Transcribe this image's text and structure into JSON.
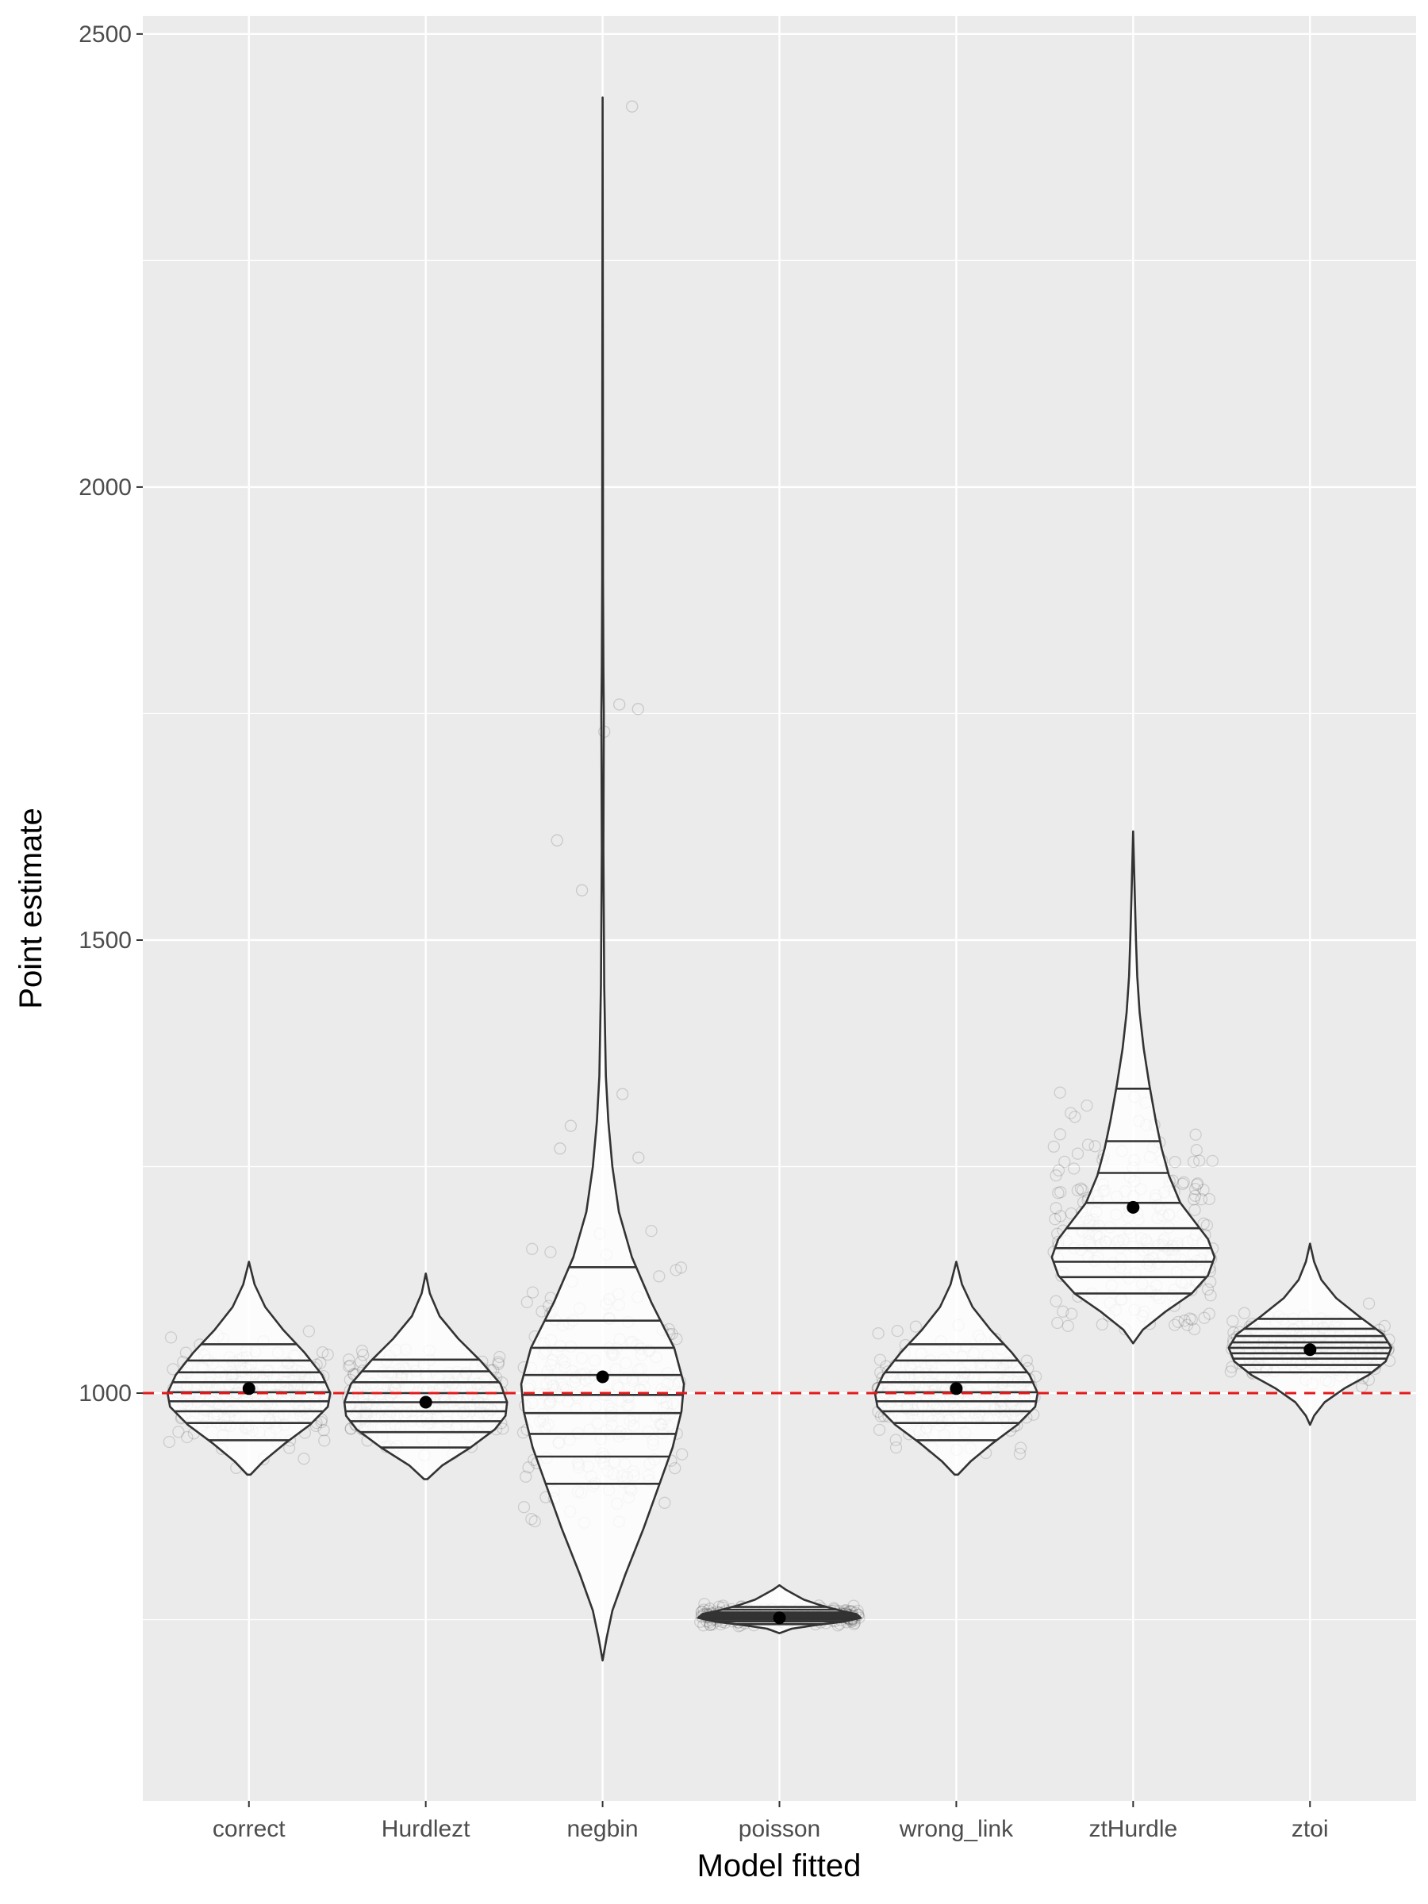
{
  "chart_data": {
    "type": "violin",
    "title": "",
    "xlabel": "Model fitted",
    "ylabel": "Point estimate",
    "ylim": [
      550,
      2520
    ],
    "y_ticks": [
      1000,
      1500,
      2000,
      2500
    ],
    "reference_line": {
      "value": 1000,
      "style": "dashed",
      "color": "#e41a1c"
    },
    "grid": true,
    "categories": [
      "correct",
      "Hurdlezt",
      "negbin",
      "poisson",
      "wrong_link",
      "ztHurdle",
      "ztoi"
    ],
    "series": [
      {
        "name": "correct",
        "min": 910,
        "max": 1145,
        "mean": 1005,
        "halfwidth": 0.46,
        "density": [
          [
            910,
            0.02
          ],
          [
            925,
            0.18
          ],
          [
            945,
            0.45
          ],
          [
            965,
            0.75
          ],
          [
            985,
            0.97
          ],
          [
            1000,
            1.0
          ],
          [
            1020,
            0.9
          ],
          [
            1045,
            0.68
          ],
          [
            1070,
            0.42
          ],
          [
            1095,
            0.2
          ],
          [
            1120,
            0.07
          ],
          [
            1145,
            0.0
          ]
        ],
        "quantiles": [
          948,
          967,
          980,
          991,
          1001,
          1012,
          1023,
          1036,
          1054
        ],
        "spread": [
          915,
          1140
        ]
      },
      {
        "name": "Hurdlezt",
        "min": 905,
        "max": 1132,
        "mean": 990,
        "halfwidth": 0.46,
        "density": [
          [
            905,
            0.02
          ],
          [
            920,
            0.2
          ],
          [
            940,
            0.55
          ],
          [
            960,
            0.85
          ],
          [
            975,
            0.98
          ],
          [
            990,
            1.0
          ],
          [
            1010,
            0.92
          ],
          [
            1035,
            0.68
          ],
          [
            1060,
            0.4
          ],
          [
            1085,
            0.17
          ],
          [
            1110,
            0.05
          ],
          [
            1132,
            0.0
          ]
        ],
        "quantiles": [
          940,
          957,
          969,
          980,
          990,
          1000,
          1012,
          1024,
          1037
        ],
        "spread": [
          910,
          1100
        ]
      },
      {
        "name": "negbin",
        "min": 705,
        "max": 2430,
        "mean": 1018,
        "halfwidth": 0.46,
        "density": [
          [
            705,
            0.0
          ],
          [
            730,
            0.05
          ],
          [
            760,
            0.12
          ],
          [
            800,
            0.28
          ],
          [
            850,
            0.5
          ],
          [
            900,
            0.7
          ],
          [
            940,
            0.86
          ],
          [
            980,
            0.97
          ],
          [
            1010,
            1.0
          ],
          [
            1050,
            0.88
          ],
          [
            1100,
            0.6
          ],
          [
            1150,
            0.36
          ],
          [
            1200,
            0.2
          ],
          [
            1250,
            0.12
          ],
          [
            1300,
            0.07
          ],
          [
            1350,
            0.04
          ],
          [
            1450,
            0.02
          ],
          [
            1600,
            0.01
          ],
          [
            1750,
            0.015
          ],
          [
            1800,
            0.01
          ],
          [
            1900,
            0.005
          ],
          [
            2100,
            0.004
          ],
          [
            2430,
            0.0
          ]
        ],
        "quantiles": [
          900,
          930,
          955,
          978,
          998,
          1020,
          1050,
          1080,
          1139
        ],
        "spread": [
          700,
          1270
        ],
        "outliers": [
          2420,
          1760,
          1755,
          1730,
          1610,
          1555,
          1330,
          1295,
          1270,
          1260
        ]
      },
      {
        "name": "poisson",
        "min": 735,
        "max": 788,
        "mean": 752,
        "halfwidth": 0.46,
        "density": [
          [
            735,
            0.0
          ],
          [
            740,
            0.15
          ],
          [
            744,
            0.45
          ],
          [
            748,
            0.8
          ],
          [
            752,
            1.0
          ],
          [
            756,
            0.95
          ],
          [
            760,
            0.75
          ],
          [
            766,
            0.5
          ],
          [
            772,
            0.3
          ],
          [
            778,
            0.18
          ],
          [
            783,
            0.08
          ],
          [
            788,
            0.0
          ]
        ],
        "quantiles": [
          745,
          748,
          750,
          752,
          754,
          756,
          758,
          761,
          764
        ],
        "spread": [
          738,
          785
        ]
      },
      {
        "name": "wrong_link",
        "min": 910,
        "max": 1145,
        "mean": 1005,
        "halfwidth": 0.46,
        "density": [
          [
            910,
            0.02
          ],
          [
            925,
            0.18
          ],
          [
            945,
            0.45
          ],
          [
            965,
            0.75
          ],
          [
            985,
            0.97
          ],
          [
            1000,
            1.0
          ],
          [
            1020,
            0.9
          ],
          [
            1045,
            0.68
          ],
          [
            1070,
            0.42
          ],
          [
            1095,
            0.2
          ],
          [
            1120,
            0.07
          ],
          [
            1145,
            0.0
          ]
        ],
        "quantiles": [
          948,
          967,
          980,
          991,
          1001,
          1012,
          1023,
          1036,
          1054
        ],
        "spread": [
          910,
          1140
        ]
      },
      {
        "name": "ztHurdle",
        "min": 1055,
        "max": 1620,
        "mean": 1205,
        "halfwidth": 0.46,
        "density": [
          [
            1055,
            0.0
          ],
          [
            1070,
            0.12
          ],
          [
            1090,
            0.4
          ],
          [
            1110,
            0.72
          ],
          [
            1130,
            0.92
          ],
          [
            1150,
            1.0
          ],
          [
            1170,
            0.92
          ],
          [
            1190,
            0.75
          ],
          [
            1210,
            0.58
          ],
          [
            1240,
            0.44
          ],
          [
            1270,
            0.35
          ],
          [
            1300,
            0.28
          ],
          [
            1340,
            0.2
          ],
          [
            1380,
            0.13
          ],
          [
            1420,
            0.08
          ],
          [
            1460,
            0.05
          ],
          [
            1500,
            0.035
          ],
          [
            1550,
            0.02
          ],
          [
            1620,
            0.0
          ]
        ],
        "quantiles": [
          1110,
          1128,
          1145,
          1160,
          1182,
          1210,
          1243,
          1278,
          1336
        ],
        "spread": [
          1070,
          1520
        ]
      },
      {
        "name": "ztoi",
        "min": 965,
        "max": 1165,
        "mean": 1048,
        "halfwidth": 0.46,
        "density": [
          [
            965,
            0.0
          ],
          [
            975,
            0.05
          ],
          [
            990,
            0.18
          ],
          [
            1005,
            0.42
          ],
          [
            1020,
            0.72
          ],
          [
            1035,
            0.93
          ],
          [
            1050,
            1.0
          ],
          [
            1065,
            0.9
          ],
          [
            1085,
            0.6
          ],
          [
            1105,
            0.32
          ],
          [
            1125,
            0.14
          ],
          [
            1145,
            0.05
          ],
          [
            1165,
            0.0
          ]
        ],
        "quantiles": [
          1023,
          1031,
          1038,
          1044,
          1050,
          1056,
          1063,
          1071,
          1082
        ],
        "spread": [
          975,
          1140
        ]
      }
    ]
  }
}
